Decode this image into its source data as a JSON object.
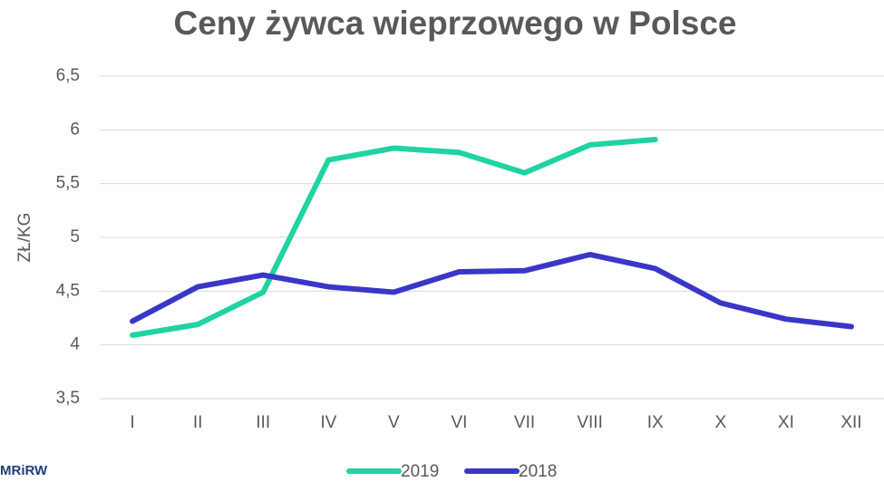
{
  "chart_data": {
    "type": "line",
    "title": "Ceny żywca wieprzowego w Polsce",
    "y_label": "ZŁ/KG",
    "source": "MRiRW",
    "categories": [
      "I",
      "II",
      "III",
      "IV",
      "V",
      "VI",
      "VII",
      "VIII",
      "IX",
      "X",
      "XI",
      "XII"
    ],
    "series": [
      {
        "name": "2019",
        "color": "#20d3a2",
        "values": [
          4.09,
          4.19,
          4.49,
          5.72,
          5.83,
          5.79,
          5.6,
          5.86,
          5.91,
          null,
          null,
          null
        ]
      },
      {
        "name": "2018",
        "color": "#3a36c8",
        "values": [
          4.22,
          4.54,
          4.65,
          4.54,
          4.49,
          4.68,
          4.69,
          4.84,
          4.71,
          4.39,
          4.24,
          4.17
        ]
      }
    ],
    "ylim": [
      3.5,
      6.5
    ],
    "yticks": [
      {
        "value": 3.5,
        "label": "3,5"
      },
      4,
      {
        "value": 4.5,
        "label": "4,5"
      },
      5,
      {
        "value": 5.5,
        "label": "5,5"
      },
      6,
      {
        "value": 6.5,
        "label": "6,5"
      }
    ],
    "grid": true,
    "legend": "bottom"
  }
}
